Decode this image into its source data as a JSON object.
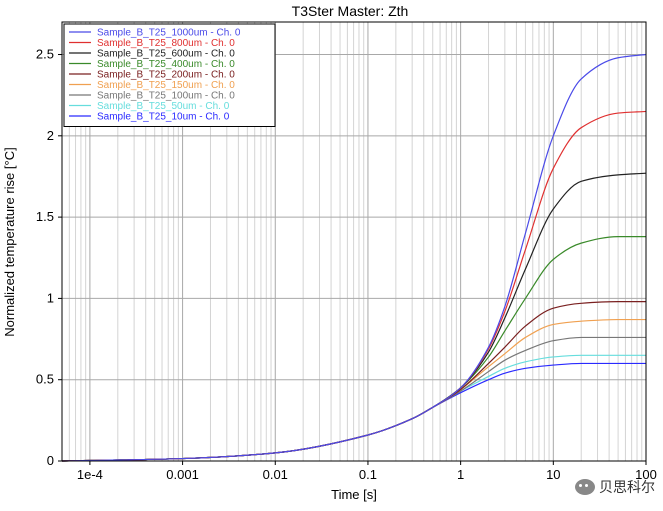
{
  "chart_data": {
    "type": "line",
    "title": "T3Ster Master: Zth",
    "xlabel": "Time [s]",
    "ylabel": "Normalized temperature rise [°C]",
    "xscale": "log",
    "xlim": [
      5e-05,
      100
    ],
    "ylim": [
      0,
      2.7
    ],
    "x_ticks": [
      {
        "value": 0.0001,
        "label": "1e-4"
      },
      {
        "value": 0.001,
        "label": "0.001"
      },
      {
        "value": 0.01,
        "label": "0.01"
      },
      {
        "value": 0.1,
        "label": "0.1"
      },
      {
        "value": 1,
        "label": "1"
      },
      {
        "value": 10,
        "label": "10"
      },
      {
        "value": 100,
        "label": "100"
      }
    ],
    "y_ticks": [
      {
        "value": 0,
        "label": "0"
      },
      {
        "value": 0.5,
        "label": "0.5"
      },
      {
        "value": 1,
        "label": "1"
      },
      {
        "value": 1.5,
        "label": "1.5"
      },
      {
        "value": 2,
        "label": "2"
      },
      {
        "value": 2.5,
        "label": "2.5"
      }
    ],
    "grid": true,
    "legend_position": "top-left",
    "x": [
      5e-05,
      0.0001,
      0.001,
      0.01,
      0.1,
      0.3,
      0.5,
      1,
      2,
      3,
      5,
      10,
      20,
      50,
      100
    ],
    "series": [
      {
        "name": "Sample_B_T25_1000um - Ch. 0",
        "color": "#4a4ae8",
        "values": [
          0,
          0.003,
          0.015,
          0.05,
          0.16,
          0.26,
          0.33,
          0.45,
          0.7,
          0.95,
          1.4,
          2.0,
          2.35,
          2.48,
          2.5
        ]
      },
      {
        "name": "Sample_B_T25_800um - Ch. 0",
        "color": "#e03030",
        "values": [
          0,
          0.003,
          0.015,
          0.05,
          0.16,
          0.26,
          0.33,
          0.45,
          0.69,
          0.92,
          1.3,
          1.8,
          2.05,
          2.14,
          2.15
        ]
      },
      {
        "name": "Sample_B_T25_600um - Ch. 0",
        "color": "#222222",
        "values": [
          0,
          0.003,
          0.015,
          0.05,
          0.16,
          0.26,
          0.33,
          0.45,
          0.67,
          0.88,
          1.18,
          1.55,
          1.72,
          1.76,
          1.77
        ]
      },
      {
        "name": "Sample_B_T25_400um - Ch. 0",
        "color": "#3a8a2a",
        "values": [
          0,
          0.003,
          0.015,
          0.05,
          0.16,
          0.26,
          0.33,
          0.45,
          0.64,
          0.8,
          1.0,
          1.24,
          1.34,
          1.38,
          1.38
        ]
      },
      {
        "name": "Sample_B_T25_200um - Ch. 0",
        "color": "#7a2020",
        "values": [
          0,
          0.003,
          0.015,
          0.05,
          0.16,
          0.26,
          0.33,
          0.44,
          0.6,
          0.7,
          0.83,
          0.94,
          0.97,
          0.98,
          0.98
        ]
      },
      {
        "name": "Sample_B_T25_150um - Ch. 0",
        "color": "#f0a050",
        "values": [
          0,
          0.003,
          0.015,
          0.05,
          0.16,
          0.26,
          0.33,
          0.44,
          0.58,
          0.66,
          0.76,
          0.84,
          0.86,
          0.87,
          0.87
        ]
      },
      {
        "name": "Sample_B_T25_100um - Ch. 0",
        "color": "#777777",
        "values": [
          0,
          0.003,
          0.015,
          0.05,
          0.16,
          0.26,
          0.33,
          0.43,
          0.55,
          0.62,
          0.68,
          0.74,
          0.76,
          0.76,
          0.76
        ]
      },
      {
        "name": "Sample_B_T25_50um - Ch. 0",
        "color": "#66dddd",
        "values": [
          0,
          0.003,
          0.015,
          0.05,
          0.16,
          0.26,
          0.33,
          0.43,
          0.52,
          0.57,
          0.61,
          0.64,
          0.65,
          0.65,
          0.65
        ]
      },
      {
        "name": "Sample_B_T25_10um - Ch. 0",
        "color": "#2a2aff",
        "values": [
          0,
          0.003,
          0.015,
          0.05,
          0.16,
          0.26,
          0.33,
          0.42,
          0.5,
          0.54,
          0.57,
          0.59,
          0.6,
          0.6,
          0.6
        ]
      }
    ]
  },
  "watermark": {
    "text": "贝思科尔",
    "icon": "wechat-icon"
  }
}
